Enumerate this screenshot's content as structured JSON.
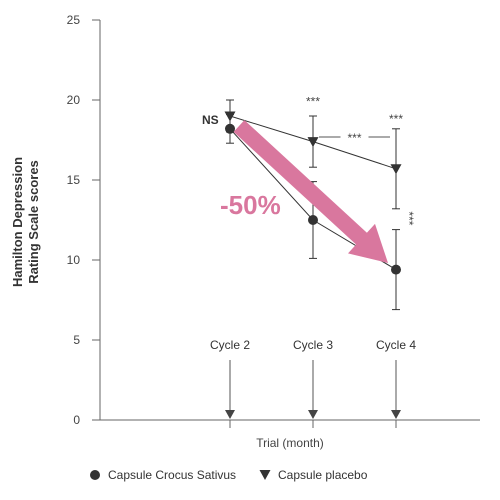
{
  "chart_data": {
    "type": "line",
    "title": "",
    "xlabel": "Trial (month)",
    "ylabel": "Hamilton Depression Rating Scale scores",
    "ylabel_lines": [
      "Hamilton Depression",
      "Rating Scale scores"
    ],
    "ylim": [
      0,
      25
    ],
    "yticks": [
      0,
      5,
      10,
      15,
      20,
      25
    ],
    "categories": [
      "Cycle 2",
      "Cycle 3",
      "Cycle 4"
    ],
    "series": [
      {
        "name": "Capsule Crocus Sativus",
        "marker": "circle",
        "values": [
          18.2,
          12.5,
          9.4
        ],
        "error": [
          0.9,
          2.4,
          2.5
        ]
      },
      {
        "name": "Capsule placebo",
        "marker": "triangle-down",
        "values": [
          19.0,
          17.4,
          15.7
        ],
        "error": [
          1.0,
          1.6,
          2.5
        ]
      }
    ],
    "annotations": {
      "ns_label": "NS",
      "significance": [
        {
          "label": "***",
          "category": 1,
          "y": 19.9
        },
        {
          "label": "***",
          "category": 2,
          "y": 18.8
        },
        {
          "label": "***",
          "between": [
            1,
            2
          ],
          "y": 17.5
        },
        {
          "label": "***",
          "category": 2,
          "y": 12.6,
          "rotated": true
        }
      ],
      "reduction_label": "-50%",
      "reduction_color": "#d9779e"
    },
    "legend_position": "bottom-left",
    "grid": false,
    "colors": {
      "axis": "#666666",
      "series": "#333333",
      "marker": "#333333"
    }
  }
}
